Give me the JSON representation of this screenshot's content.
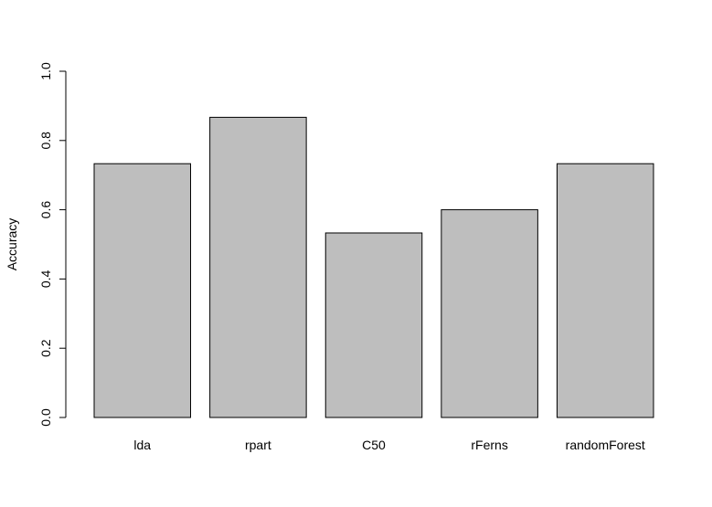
{
  "chart_data": {
    "type": "bar",
    "categories": [
      "lda",
      "rpart",
      "C50",
      "rFerns",
      "randomForest"
    ],
    "values": [
      0.733,
      0.867,
      0.533,
      0.6,
      0.733
    ],
    "title": "",
    "xlabel": "",
    "ylabel": "Accuracy",
    "ylim": [
      0,
      1
    ],
    "yticks": [
      0.0,
      0.2,
      0.4,
      0.6,
      0.8,
      1.0
    ],
    "ytick_labels": [
      "0.0",
      "0.2",
      "0.4",
      "0.6",
      "0.8",
      "1.0"
    ],
    "grid": false,
    "legend": "none",
    "colors": {
      "bar_fill": "#bebebe",
      "bar_stroke": "#000000",
      "axis": "#000000",
      "background": "#ffffff"
    }
  }
}
